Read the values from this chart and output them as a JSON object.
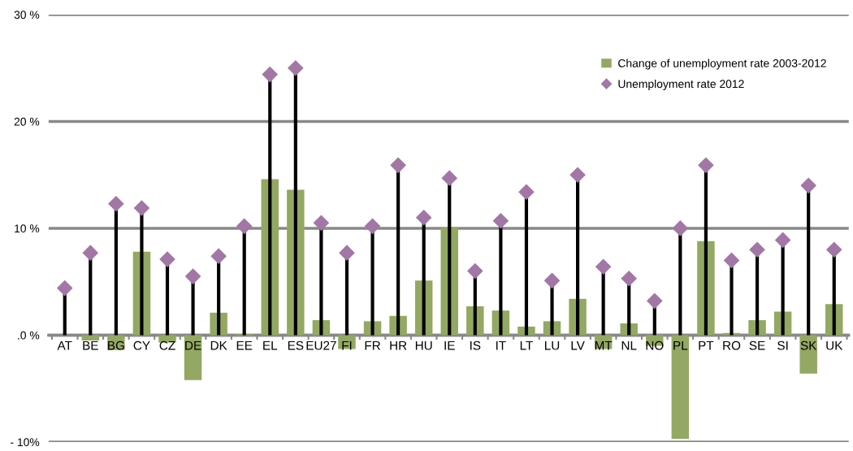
{
  "chart_data": {
    "type": "bar",
    "categories": [
      "AT",
      "BE",
      "BG",
      "CY",
      "CZ",
      "DE",
      "DK",
      "EE",
      "EL",
      "ES",
      "EU27",
      "FI",
      "FR",
      "HR",
      "HU",
      "IE",
      "IS",
      "IT",
      "LT",
      "LU",
      "LV",
      "MT",
      "NL",
      "NO",
      "PL",
      "PT",
      "RO",
      "SE",
      "SI",
      "SK",
      "UK"
    ],
    "series": [
      {
        "name": "Change of unemployment rate 2003-2012",
        "color": "#93a862",
        "values": [
          0,
          -0.5,
          -1.4,
          7.8,
          -0.7,
          -4.2,
          2.1,
          0.1,
          14.6,
          13.6,
          1.4,
          -1.3,
          1.3,
          1.8,
          5.1,
          10.1,
          2.7,
          2.3,
          0.8,
          1.3,
          3.4,
          -1.3,
          1.1,
          -1.0,
          -9.7,
          8.8,
          0.2,
          1.4,
          2.2,
          -3.6,
          2.9
        ]
      },
      {
        "name": "Unemployment rate 2012",
        "type": "lollipop",
        "marker": "diamond",
        "color": "#a277a6",
        "values": [
          4.4,
          7.7,
          12.3,
          11.9,
          7.1,
          5.5,
          7.4,
          10.2,
          24.4,
          25.0,
          10.5,
          7.7,
          10.2,
          15.9,
          11.0,
          14.7,
          6.0,
          10.7,
          13.4,
          5.1,
          15.0,
          6.4,
          5.3,
          3.2,
          10.0,
          15.9,
          7.0,
          8.0,
          8.9,
          14.0,
          8.0
        ]
      }
    ],
    "ylim": [
      -10,
      30
    ],
    "yticks": [
      {
        "value": -10,
        "label": "- 10%"
      },
      {
        "value": 0,
        "label": ".0 %"
      },
      {
        "value": 10,
        "label": "10 %"
      },
      {
        "value": 20,
        "label": "20 %"
      },
      {
        "value": 30,
        "label": "30 %"
      }
    ],
    "grid": "y",
    "legend": "top right"
  }
}
